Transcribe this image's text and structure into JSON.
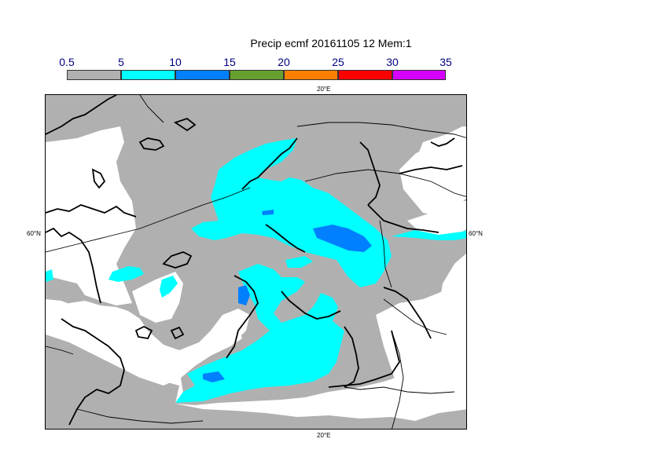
{
  "title": "Precip ecmf 20161105 12 Mem:1",
  "colorbar": {
    "ticks": [
      "0.5",
      "5",
      "10",
      "15",
      "20",
      "25",
      "30",
      "35"
    ],
    "colors": [
      "#b0b0b0",
      "#00ffff",
      "#0080ff",
      "#66a030",
      "#ff8000",
      "#ff0000",
      "#d600ff"
    ]
  },
  "axis_labels": {
    "top_lon": "20°E",
    "bottom_lon": "20°E",
    "left_lat": "60°N",
    "right_lat": "60°N"
  }
}
